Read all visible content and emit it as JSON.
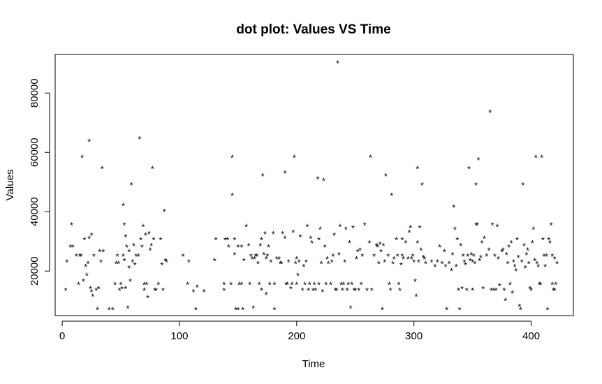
{
  "chart_data": {
    "type": "scatter",
    "title": "dot plot: Values VS Time",
    "xlabel": "Time",
    "ylabel": "Values",
    "xlim": [
      -6,
      436
    ],
    "ylim": [
      5000,
      93000
    ],
    "xticks": [
      0,
      100,
      200,
      300,
      400
    ],
    "yticks": [
      20000,
      40000,
      60000,
      80000
    ],
    "xtick_labels": [
      "0",
      "100",
      "200",
      "300",
      "400"
    ],
    "ytick_labels": [
      "20000",
      "40000",
      "60000",
      "80000"
    ],
    "grid": false,
    "legend": "none",
    "marker": "*",
    "color": "#000000",
    "points": [
      [
        3,
        14000
      ],
      [
        4,
        23500
      ],
      [
        7,
        28500
      ],
      [
        8,
        36000
      ],
      [
        9,
        28500
      ],
      [
        12,
        25500
      ],
      [
        14,
        16000
      ],
      [
        15,
        25500
      ],
      [
        16,
        25500
      ],
      [
        17,
        58800
      ],
      [
        18,
        17000
      ],
      [
        19,
        31000
      ],
      [
        20,
        22000
      ],
      [
        21,
        19000
      ],
      [
        22,
        23000
      ],
      [
        23,
        64200
      ],
      [
        23,
        31500
      ],
      [
        24,
        14500
      ],
      [
        25,
        13500
      ],
      [
        25,
        32500
      ],
      [
        26,
        12000
      ],
      [
        27,
        25500
      ],
      [
        29,
        14000
      ],
      [
        30,
        7500
      ],
      [
        31,
        14500
      ],
      [
        32,
        27000
      ],
      [
        33,
        23500
      ],
      [
        34,
        55000
      ],
      [
        35,
        27000
      ],
      [
        40,
        7500
      ],
      [
        43,
        7500
      ],
      [
        45,
        16000
      ],
      [
        46,
        23000
      ],
      [
        47,
        25500
      ],
      [
        48,
        23000
      ],
      [
        49,
        14000
      ],
      [
        50,
        16000
      ],
      [
        51,
        14500
      ],
      [
        52,
        42500
      ],
      [
        52,
        25500
      ],
      [
        53,
        36000
      ],
      [
        53,
        24000
      ],
      [
        54,
        32000
      ],
      [
        54,
        14500
      ],
      [
        55,
        28500
      ],
      [
        56,
        8000
      ],
      [
        57,
        21500
      ],
      [
        57,
        27000
      ],
      [
        58,
        17000
      ],
      [
        59,
        49500
      ],
      [
        60,
        23500
      ],
      [
        61,
        29000
      ],
      [
        62,
        22500
      ],
      [
        63,
        25500
      ],
      [
        65,
        25500
      ],
      [
        66,
        65000
      ],
      [
        67,
        31000
      ],
      [
        68,
        28500
      ],
      [
        69,
        35500
      ],
      [
        70,
        14000
      ],
      [
        70,
        16000
      ],
      [
        71,
        32500
      ],
      [
        72,
        16000
      ],
      [
        73,
        11500
      ],
      [
        74,
        33000
      ],
      [
        75,
        27500
      ],
      [
        76,
        29000
      ],
      [
        77,
        55000
      ],
      [
        78,
        31000
      ],
      [
        79,
        14000
      ],
      [
        80,
        14000
      ],
      [
        82,
        16000
      ],
      [
        84,
        31000
      ],
      [
        85,
        22500
      ],
      [
        86,
        14000
      ],
      [
        87,
        40500
      ],
      [
        88,
        24000
      ],
      [
        89,
        23500
      ],
      [
        103,
        25500
      ],
      [
        107,
        16000
      ],
      [
        108,
        23500
      ],
      [
        112,
        13500
      ],
      [
        114,
        7500
      ],
      [
        115,
        15000
      ],
      [
        121,
        13500
      ],
      [
        130,
        24000
      ],
      [
        131,
        31000
      ],
      [
        138,
        16000
      ],
      [
        138,
        14000
      ],
      [
        139,
        31000
      ],
      [
        141,
        31000
      ],
      [
        142,
        28500
      ],
      [
        144,
        16000
      ],
      [
        145,
        58800
      ],
      [
        145,
        46000
      ],
      [
        147,
        26000
      ],
      [
        147,
        31000
      ],
      [
        148,
        7500
      ],
      [
        150,
        7500
      ],
      [
        150,
        28500
      ],
      [
        151,
        16000
      ],
      [
        153,
        16000
      ],
      [
        153,
        28500
      ],
      [
        154,
        7500
      ],
      [
        155,
        24000
      ],
      [
        157,
        35500
      ],
      [
        159,
        29000
      ],
      [
        160,
        16000
      ],
      [
        161,
        25500
      ],
      [
        162,
        24500
      ],
      [
        163,
        8000
      ],
      [
        164,
        24500
      ],
      [
        165,
        25500
      ],
      [
        166,
        25500
      ],
      [
        167,
        23000
      ],
      [
        168,
        16000
      ],
      [
        169,
        29000
      ],
      [
        170,
        31000
      ],
      [
        170,
        14000
      ],
      [
        171,
        52500
      ],
      [
        172,
        26000
      ],
      [
        173,
        33000
      ],
      [
        174,
        24500
      ],
      [
        174,
        12500
      ],
      [
        175,
        25500
      ],
      [
        176,
        28500
      ],
      [
        177,
        16000
      ],
      [
        178,
        23500
      ],
      [
        180,
        33000
      ],
      [
        181,
        16000
      ],
      [
        181,
        7500
      ],
      [
        183,
        24500
      ],
      [
        185,
        24500
      ],
      [
        186,
        23000
      ],
      [
        187,
        23000
      ],
      [
        188,
        33000
      ],
      [
        190,
        53500
      ],
      [
        190,
        31500
      ],
      [
        191,
        16000
      ],
      [
        192,
        16000
      ],
      [
        193,
        23500
      ],
      [
        195,
        14500
      ],
      [
        196,
        16000
      ],
      [
        197,
        33500
      ],
      [
        198,
        58800
      ],
      [
        199,
        23000
      ],
      [
        200,
        24500
      ],
      [
        200,
        16000
      ],
      [
        201,
        19000
      ],
      [
        202,
        23500
      ],
      [
        203,
        32000
      ],
      [
        205,
        14000
      ],
      [
        206,
        22000
      ],
      [
        207,
        16000
      ],
      [
        208,
        23500
      ],
      [
        209,
        35500
      ],
      [
        210,
        14000
      ],
      [
        211,
        16000
      ],
      [
        212,
        31500
      ],
      [
        213,
        30000
      ],
      [
        214,
        14000
      ],
      [
        215,
        16000
      ],
      [
        216,
        14000
      ],
      [
        218,
        51500
      ],
      [
        219,
        16000
      ],
      [
        219,
        31000
      ],
      [
        220,
        34500
      ],
      [
        221,
        23000
      ],
      [
        222,
        13500
      ],
      [
        223,
        51000
      ],
      [
        224,
        28500
      ],
      [
        225,
        16000
      ],
      [
        226,
        24500
      ],
      [
        227,
        23000
      ],
      [
        229,
        16000
      ],
      [
        230,
        23500
      ],
      [
        231,
        25500
      ],
      [
        232,
        32500
      ],
      [
        233,
        14000
      ],
      [
        234,
        14000
      ],
      [
        235,
        90500
      ],
      [
        236,
        26000
      ],
      [
        237,
        35500
      ],
      [
        238,
        16000
      ],
      [
        239,
        14000
      ],
      [
        240,
        16000
      ],
      [
        241,
        23500
      ],
      [
        242,
        34500
      ],
      [
        243,
        14000
      ],
      [
        244,
        16000
      ],
      [
        245,
        30000
      ],
      [
        246,
        8000
      ],
      [
        247,
        16000
      ],
      [
        248,
        35000
      ],
      [
        249,
        14000
      ],
      [
        250,
        14000
      ],
      [
        251,
        24500
      ],
      [
        252,
        27000
      ],
      [
        253,
        14000
      ],
      [
        254,
        27500
      ],
      [
        255,
        16000
      ],
      [
        256,
        25500
      ],
      [
        258,
        36000
      ],
      [
        260,
        14000
      ],
      [
        262,
        30000
      ],
      [
        263,
        58800
      ],
      [
        264,
        14000
      ],
      [
        266,
        25500
      ],
      [
        268,
        29000
      ],
      [
        269,
        28500
      ],
      [
        270,
        23000
      ],
      [
        271,
        29500
      ],
      [
        272,
        27000
      ],
      [
        273,
        7500
      ],
      [
        274,
        29000
      ],
      [
        275,
        23500
      ],
      [
        276,
        52500
      ],
      [
        278,
        25500
      ],
      [
        279,
        16000
      ],
      [
        280,
        14000
      ],
      [
        281,
        46000
      ],
      [
        282,
        23000
      ],
      [
        283,
        24500
      ],
      [
        285,
        31000
      ],
      [
        286,
        25500
      ],
      [
        287,
        16000
      ],
      [
        288,
        14000
      ],
      [
        289,
        22500
      ],
      [
        290,
        25500
      ],
      [
        290,
        31000
      ],
      [
        291,
        24500
      ],
      [
        293,
        30000
      ],
      [
        295,
        24500
      ],
      [
        296,
        33500
      ],
      [
        297,
        35000
      ],
      [
        298,
        24500
      ],
      [
        299,
        25500
      ],
      [
        300,
        23500
      ],
      [
        301,
        17000
      ],
      [
        302,
        12000
      ],
      [
        303,
        55000
      ],
      [
        303,
        30000
      ],
      [
        304,
        23500
      ],
      [
        305,
        35000
      ],
      [
        306,
        27500
      ],
      [
        307,
        49500
      ],
      [
        308,
        25000
      ],
      [
        309,
        24500
      ],
      [
        310,
        23000
      ],
      [
        315,
        23500
      ],
      [
        318,
        22000
      ],
      [
        320,
        23500
      ],
      [
        322,
        28500
      ],
      [
        324,
        23000
      ],
      [
        326,
        27000
      ],
      [
        327,
        22000
      ],
      [
        328,
        7500
      ],
      [
        330,
        23000
      ],
      [
        332,
        20500
      ],
      [
        333,
        26000
      ],
      [
        334,
        42000
      ],
      [
        335,
        34500
      ],
      [
        336,
        22000
      ],
      [
        337,
        31000
      ],
      [
        338,
        14000
      ],
      [
        339,
        7500
      ],
      [
        340,
        29000
      ],
      [
        341,
        14500
      ],
      [
        342,
        25500
      ],
      [
        343,
        23500
      ],
      [
        344,
        22500
      ],
      [
        345,
        14000
      ],
      [
        346,
        25500
      ],
      [
        347,
        55000
      ],
      [
        348,
        24000
      ],
      [
        349,
        26000
      ],
      [
        350,
        23500
      ],
      [
        350,
        14000
      ],
      [
        351,
        25500
      ],
      [
        352,
        23000
      ],
      [
        353,
        36000
      ],
      [
        353,
        49500
      ],
      [
        354,
        36000
      ],
      [
        355,
        58000
      ],
      [
        356,
        24000
      ],
      [
        357,
        25000
      ],
      [
        358,
        30000
      ],
      [
        359,
        14500
      ],
      [
        360,
        31500
      ],
      [
        362,
        25500
      ],
      [
        364,
        27500
      ],
      [
        365,
        74000
      ],
      [
        366,
        14000
      ],
      [
        367,
        36000
      ],
      [
        368,
        14000
      ],
      [
        369,
        25500
      ],
      [
        370,
        14000
      ],
      [
        371,
        35500
      ],
      [
        372,
        24500
      ],
      [
        373,
        15500
      ],
      [
        375,
        27000
      ],
      [
        376,
        27500
      ],
      [
        377,
        14000
      ],
      [
        378,
        10500
      ],
      [
        379,
        26000
      ],
      [
        380,
        23000
      ],
      [
        381,
        28500
      ],
      [
        382,
        16000
      ],
      [
        383,
        30000
      ],
      [
        384,
        13000
      ],
      [
        385,
        23500
      ],
      [
        386,
        22000
      ],
      [
        387,
        20500
      ],
      [
        388,
        31000
      ],
      [
        389,
        25000
      ],
      [
        390,
        8500
      ],
      [
        391,
        7500
      ],
      [
        392,
        23500
      ],
      [
        393,
        49500
      ],
      [
        394,
        29000
      ],
      [
        395,
        21500
      ],
      [
        396,
        26000
      ],
      [
        397,
        27500
      ],
      [
        398,
        23000
      ],
      [
        399,
        14500
      ],
      [
        400,
        14000
      ],
      [
        401,
        30000
      ],
      [
        402,
        34500
      ],
      [
        403,
        24000
      ],
      [
        404,
        58800
      ],
      [
        405,
        23000
      ],
      [
        406,
        22000
      ],
      [
        407,
        16000
      ],
      [
        408,
        16000
      ],
      [
        409,
        58800
      ],
      [
        410,
        31000
      ],
      [
        411,
        25500
      ],
      [
        412,
        22000
      ],
      [
        413,
        25500
      ],
      [
        414,
        7500
      ],
      [
        415,
        31000
      ],
      [
        416,
        30000
      ],
      [
        417,
        36000
      ],
      [
        418,
        25500
      ],
      [
        418,
        16000
      ],
      [
        419,
        14000
      ],
      [
        420,
        24500
      ],
      [
        420,
        14000
      ],
      [
        421,
        16000
      ],
      [
        422,
        23000
      ]
    ]
  }
}
